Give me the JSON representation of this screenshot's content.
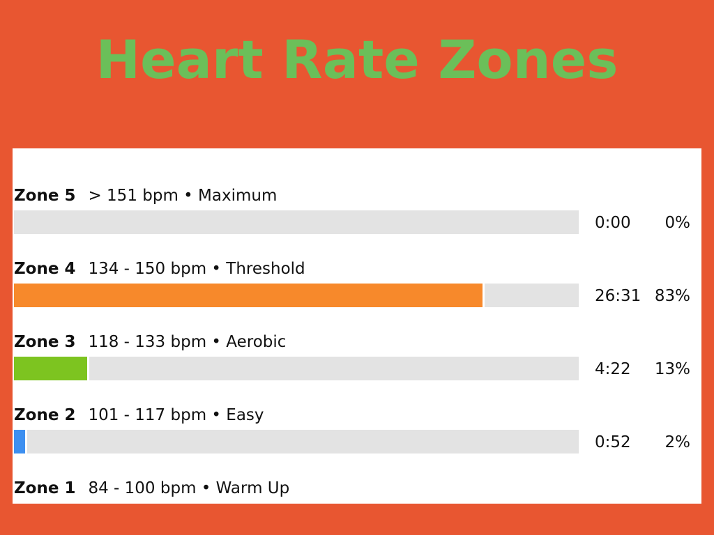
{
  "title": "Heart Rate Zones",
  "colors": {
    "background": "#E85631",
    "title": "#6BBF59",
    "panel": "#FFFFFF",
    "track": "#E3E3E3"
  },
  "chart_data": {
    "type": "bar",
    "orientation": "horizontal",
    "zones": [
      {
        "name": "Zone 5",
        "range": "> 151 bpm • Maximum",
        "time": "0:00",
        "percent_label": "0%",
        "value": 0,
        "color": "#E3E3E3",
        "has_bar": true
      },
      {
        "name": "Zone 4",
        "range": "134 - 150 bpm • Threshold",
        "time": "26:31",
        "percent_label": "83%",
        "value": 83,
        "color": "#F7892B",
        "has_bar": true
      },
      {
        "name": "Zone 3",
        "range": "118 - 133 bpm • Aerobic",
        "time": "4:22",
        "percent_label": "13%",
        "value": 13,
        "color": "#7DC420",
        "has_bar": true
      },
      {
        "name": "Zone 2",
        "range": "101 - 117 bpm • Easy",
        "time": "0:52",
        "percent_label": "2%",
        "value": 2,
        "color": "#3D8FF0",
        "has_bar": true
      },
      {
        "name": "Zone 1",
        "range": "84 - 100 bpm • Warm Up",
        "time": "",
        "percent_label": "",
        "value": null,
        "color": "#E3E3E3",
        "has_bar": false
      }
    ],
    "xlim": [
      0,
      100
    ]
  }
}
